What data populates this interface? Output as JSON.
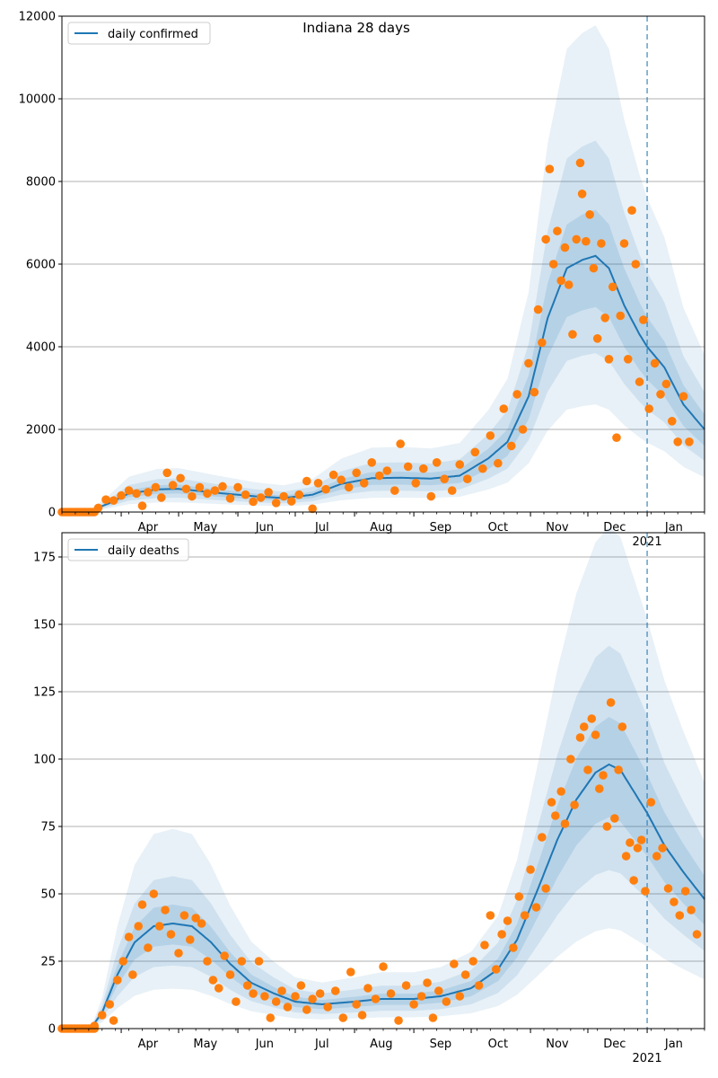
{
  "figure": {
    "title": "Indiana 28 days"
  },
  "colors": {
    "line": "#1f77b4",
    "dots": "#ff7f0e",
    "band": "#1f77b4",
    "grid": "#b0b0b0",
    "vline": "#1f77b4"
  },
  "chart_data": [
    {
      "type": "line",
      "title": "Indiana 28 days",
      "legend": {
        "label": "daily confirmed",
        "placement": "top-left"
      },
      "ylim": [
        0,
        12000
      ],
      "yticks": [
        0,
        2000,
        4000,
        6000,
        8000,
        10000,
        12000
      ],
      "grid": "y",
      "x_start": "2020-03-01",
      "x_end": "2021-01-31",
      "vline": "2021-01-01",
      "series_line_knots": [
        [
          "2020-03-01",
          0
        ],
        [
          "2020-03-15",
          20
        ],
        [
          "2020-03-25",
          200
        ],
        [
          "2020-04-05",
          450
        ],
        [
          "2020-04-20",
          550
        ],
        [
          "2020-05-01",
          560
        ],
        [
          "2020-05-20",
          470
        ],
        [
          "2020-06-10",
          380
        ],
        [
          "2020-06-25",
          340
        ],
        [
          "2020-07-10",
          420
        ],
        [
          "2020-07-25",
          680
        ],
        [
          "2020-08-10",
          820
        ],
        [
          "2020-08-25",
          830
        ],
        [
          "2020-09-10",
          810
        ],
        [
          "2020-09-25",
          880
        ],
        [
          "2020-10-10",
          1300
        ],
        [
          "2020-10-20",
          1700
        ],
        [
          "2020-10-31",
          2800
        ],
        [
          "2020-11-10",
          4700
        ],
        [
          "2020-11-20",
          5900
        ],
        [
          "2020-11-28",
          6100
        ],
        [
          "2020-12-05",
          6200
        ],
        [
          "2020-12-12",
          5900
        ],
        [
          "2020-12-20",
          5000
        ],
        [
          "2020-12-28",
          4300
        ],
        [
          "2021-01-01",
          4000
        ],
        [
          "2021-01-10",
          3500
        ],
        [
          "2021-01-20",
          2600
        ],
        [
          "2021-01-31",
          2000
        ]
      ],
      "bands_outer_ratio": [
        0.42,
        1.9
      ],
      "bands_mid_ratio": [
        0.62,
        1.45
      ],
      "bands_inner_ratio": [
        0.8,
        1.18
      ],
      "observed": [
        [
          "2020-03-20",
          100
        ],
        [
          "2020-03-24",
          300
        ],
        [
          "2020-03-28",
          280
        ],
        [
          "2020-04-01",
          400
        ],
        [
          "2020-04-05",
          520
        ],
        [
          "2020-04-09",
          450
        ],
        [
          "2020-04-12",
          150
        ],
        [
          "2020-04-15",
          480
        ],
        [
          "2020-04-19",
          600
        ],
        [
          "2020-04-22",
          350
        ],
        [
          "2020-04-25",
          950
        ],
        [
          "2020-04-28",
          650
        ],
        [
          "2020-05-02",
          820
        ],
        [
          "2020-05-05",
          560
        ],
        [
          "2020-05-08",
          380
        ],
        [
          "2020-05-12",
          600
        ],
        [
          "2020-05-16",
          450
        ],
        [
          "2020-05-20",
          520
        ],
        [
          "2020-05-24",
          620
        ],
        [
          "2020-05-28",
          330
        ],
        [
          "2020-06-01",
          600
        ],
        [
          "2020-06-05",
          420
        ],
        [
          "2020-06-09",
          250
        ],
        [
          "2020-06-13",
          350
        ],
        [
          "2020-06-17",
          480
        ],
        [
          "2020-06-21",
          220
        ],
        [
          "2020-06-25",
          380
        ],
        [
          "2020-06-29",
          260
        ],
        [
          "2020-07-03",
          420
        ],
        [
          "2020-07-07",
          750
        ],
        [
          "2020-07-10",
          80
        ],
        [
          "2020-07-13",
          700
        ],
        [
          "2020-07-17",
          550
        ],
        [
          "2020-07-21",
          900
        ],
        [
          "2020-07-25",
          780
        ],
        [
          "2020-07-29",
          600
        ],
        [
          "2020-08-02",
          950
        ],
        [
          "2020-08-06",
          700
        ],
        [
          "2020-08-10",
          1200
        ],
        [
          "2020-08-14",
          880
        ],
        [
          "2020-08-18",
          1000
        ],
        [
          "2020-08-22",
          520
        ],
        [
          "2020-08-25",
          1650
        ],
        [
          "2020-08-29",
          1100
        ],
        [
          "2020-09-02",
          700
        ],
        [
          "2020-09-06",
          1050
        ],
        [
          "2020-09-10",
          380
        ],
        [
          "2020-09-13",
          1200
        ],
        [
          "2020-09-17",
          800
        ],
        [
          "2020-09-21",
          520
        ],
        [
          "2020-09-25",
          1150
        ],
        [
          "2020-09-29",
          800
        ],
        [
          "2020-10-03",
          1450
        ],
        [
          "2020-10-07",
          1050
        ],
        [
          "2020-10-11",
          1850
        ],
        [
          "2020-10-15",
          1180
        ],
        [
          "2020-10-18",
          2500
        ],
        [
          "2020-10-22",
          1600
        ],
        [
          "2020-10-25",
          2850
        ],
        [
          "2020-10-28",
          2000
        ],
        [
          "2020-10-31",
          3600
        ],
        [
          "2020-11-03",
          2900
        ],
        [
          "2020-11-05",
          4900
        ],
        [
          "2020-11-07",
          4100
        ],
        [
          "2020-11-09",
          6600
        ],
        [
          "2020-11-11",
          8300
        ],
        [
          "2020-11-13",
          6000
        ],
        [
          "2020-11-15",
          6800
        ],
        [
          "2020-11-17",
          5600
        ],
        [
          "2020-11-19",
          6400
        ],
        [
          "2020-11-21",
          5500
        ],
        [
          "2020-11-23",
          4300
        ],
        [
          "2020-11-25",
          6600
        ],
        [
          "2020-11-27",
          8450
        ],
        [
          "2020-11-28",
          7700
        ],
        [
          "2020-11-30",
          6550
        ],
        [
          "2020-12-02",
          7200
        ],
        [
          "2020-12-04",
          5900
        ],
        [
          "2020-12-06",
          4200
        ],
        [
          "2020-12-08",
          6500
        ],
        [
          "2020-12-10",
          4700
        ],
        [
          "2020-12-12",
          3700
        ],
        [
          "2020-12-14",
          5450
        ],
        [
          "2020-12-16",
          1800
        ],
        [
          "2020-12-18",
          4750
        ],
        [
          "2020-12-20",
          6500
        ],
        [
          "2020-12-22",
          3700
        ],
        [
          "2020-12-24",
          7300
        ],
        [
          "2020-12-26",
          6000
        ],
        [
          "2020-12-28",
          3150
        ],
        [
          "2020-12-30",
          4650
        ],
        [
          "2021-01-02",
          2500
        ],
        [
          "2021-01-05",
          3600
        ],
        [
          "2021-01-08",
          2850
        ],
        [
          "2021-01-11",
          3100
        ],
        [
          "2021-01-14",
          2200
        ],
        [
          "2021-01-17",
          1700
        ],
        [
          "2021-01-20",
          2800
        ],
        [
          "2021-01-23",
          1700
        ]
      ],
      "xaxis": {
        "month_labels": [
          "Apr",
          "May",
          "Jun",
          "Jul",
          "Aug",
          "Sep",
          "Oct",
          "Nov",
          "Dec",
          "Jan"
        ],
        "year_label": "2021"
      }
    },
    {
      "type": "line",
      "legend": {
        "label": "daily deaths",
        "placement": "top-left"
      },
      "ylim": [
        0,
        184
      ],
      "yticks": [
        0,
        25,
        50,
        75,
        100,
        125,
        150,
        175
      ],
      "grid": "y",
      "x_start": "2020-03-01",
      "x_end": "2021-01-31",
      "vline": "2021-01-01",
      "series_line_knots": [
        [
          "2020-03-01",
          0
        ],
        [
          "2020-03-16",
          0
        ],
        [
          "2020-03-22",
          6
        ],
        [
          "2020-03-30",
          20
        ],
        [
          "2020-04-08",
          32
        ],
        [
          "2020-04-18",
          38
        ],
        [
          "2020-04-28",
          39
        ],
        [
          "2020-05-08",
          38
        ],
        [
          "2020-05-18",
          32
        ],
        [
          "2020-05-28",
          24
        ],
        [
          "2020-06-08",
          17
        ],
        [
          "2020-06-20",
          13
        ],
        [
          "2020-07-01",
          10
        ],
        [
          "2020-07-15",
          9
        ],
        [
          "2020-08-01",
          10
        ],
        [
          "2020-08-15",
          11
        ],
        [
          "2020-09-01",
          11
        ],
        [
          "2020-09-15",
          12
        ],
        [
          "2020-10-01",
          15
        ],
        [
          "2020-10-15",
          22
        ],
        [
          "2020-10-25",
          33
        ],
        [
          "2020-11-05",
          52
        ],
        [
          "2020-11-15",
          70
        ],
        [
          "2020-11-25",
          85
        ],
        [
          "2020-12-05",
          95
        ],
        [
          "2020-12-12",
          98
        ],
        [
          "2020-12-18",
          96
        ],
        [
          "2020-12-25",
          88
        ],
        [
          "2021-01-01",
          80
        ],
        [
          "2021-01-10",
          68
        ],
        [
          "2021-01-20",
          58
        ],
        [
          "2021-01-31",
          48
        ]
      ],
      "bands_outer_ratio": [
        0.38,
        1.9
      ],
      "bands_mid_ratio": [
        0.6,
        1.45
      ],
      "bands_inner_ratio": [
        0.8,
        1.18
      ],
      "observed": [
        [
          "2020-03-18",
          1
        ],
        [
          "2020-03-22",
          5
        ],
        [
          "2020-03-26",
          9
        ],
        [
          "2020-03-28",
          3
        ],
        [
          "2020-03-30",
          18
        ],
        [
          "2020-04-02",
          25
        ],
        [
          "2020-04-05",
          34
        ],
        [
          "2020-04-07",
          20
        ],
        [
          "2020-04-10",
          38
        ],
        [
          "2020-04-12",
          46
        ],
        [
          "2020-04-15",
          30
        ],
        [
          "2020-04-18",
          50
        ],
        [
          "2020-04-21",
          38
        ],
        [
          "2020-04-24",
          44
        ],
        [
          "2020-04-27",
          35
        ],
        [
          "2020-05-01",
          28
        ],
        [
          "2020-05-04",
          42
        ],
        [
          "2020-05-07",
          33
        ],
        [
          "2020-05-10",
          41
        ],
        [
          "2020-05-13",
          39
        ],
        [
          "2020-05-16",
          25
        ],
        [
          "2020-05-19",
          18
        ],
        [
          "2020-05-22",
          15
        ],
        [
          "2020-05-25",
          27
        ],
        [
          "2020-05-28",
          20
        ],
        [
          "2020-05-31",
          10
        ],
        [
          "2020-06-03",
          25
        ],
        [
          "2020-06-06",
          16
        ],
        [
          "2020-06-09",
          13
        ],
        [
          "2020-06-12",
          25
        ],
        [
          "2020-06-15",
          12
        ],
        [
          "2020-06-18",
          4
        ],
        [
          "2020-06-21",
          10
        ],
        [
          "2020-06-24",
          14
        ],
        [
          "2020-06-27",
          8
        ],
        [
          "2020-07-01",
          12
        ],
        [
          "2020-07-04",
          16
        ],
        [
          "2020-07-07",
          7
        ],
        [
          "2020-07-10",
          11
        ],
        [
          "2020-07-14",
          13
        ],
        [
          "2020-07-18",
          8
        ],
        [
          "2020-07-22",
          14
        ],
        [
          "2020-07-26",
          4
        ],
        [
          "2020-07-30",
          21
        ],
        [
          "2020-08-02",
          9
        ],
        [
          "2020-08-05",
          5
        ],
        [
          "2020-08-08",
          15
        ],
        [
          "2020-08-12",
          11
        ],
        [
          "2020-08-16",
          23
        ],
        [
          "2020-08-20",
          13
        ],
        [
          "2020-08-24",
          3
        ],
        [
          "2020-08-28",
          16
        ],
        [
          "2020-09-01",
          9
        ],
        [
          "2020-09-05",
          12
        ],
        [
          "2020-09-08",
          17
        ],
        [
          "2020-09-11",
          4
        ],
        [
          "2020-09-14",
          14
        ],
        [
          "2020-09-18",
          10
        ],
        [
          "2020-09-22",
          24
        ],
        [
          "2020-09-25",
          12
        ],
        [
          "2020-09-28",
          20
        ],
        [
          "2020-10-02",
          25
        ],
        [
          "2020-10-05",
          16
        ],
        [
          "2020-10-08",
          31
        ],
        [
          "2020-10-11",
          42
        ],
        [
          "2020-10-14",
          22
        ],
        [
          "2020-10-17",
          35
        ],
        [
          "2020-10-20",
          40
        ],
        [
          "2020-10-23",
          30
        ],
        [
          "2020-10-26",
          49
        ],
        [
          "2020-10-29",
          42
        ],
        [
          "2020-11-01",
          59
        ],
        [
          "2020-11-04",
          45
        ],
        [
          "2020-11-07",
          71
        ],
        [
          "2020-11-09",
          52
        ],
        [
          "2020-11-12",
          84
        ],
        [
          "2020-11-14",
          79
        ],
        [
          "2020-11-17",
          88
        ],
        [
          "2020-11-19",
          76
        ],
        [
          "2020-11-22",
          100
        ],
        [
          "2020-11-24",
          83
        ],
        [
          "2020-11-27",
          108
        ],
        [
          "2020-11-29",
          112
        ],
        [
          "2020-12-01",
          96
        ],
        [
          "2020-12-03",
          115
        ],
        [
          "2020-12-05",
          109
        ],
        [
          "2020-12-07",
          89
        ],
        [
          "2020-12-09",
          94
        ],
        [
          "2020-12-11",
          75
        ],
        [
          "2020-12-13",
          121
        ],
        [
          "2020-12-15",
          78
        ],
        [
          "2020-12-17",
          96
        ],
        [
          "2020-12-19",
          112
        ],
        [
          "2020-12-21",
          64
        ],
        [
          "2020-12-23",
          69
        ],
        [
          "2020-12-25",
          55
        ],
        [
          "2020-12-27",
          67
        ],
        [
          "2020-12-29",
          70
        ],
        [
          "2020-12-31",
          51
        ],
        [
          "2021-01-03",
          84
        ],
        [
          "2021-01-06",
          64
        ],
        [
          "2021-01-09",
          67
        ],
        [
          "2021-01-12",
          52
        ],
        [
          "2021-01-15",
          47
        ],
        [
          "2021-01-18",
          42
        ],
        [
          "2021-01-21",
          51
        ],
        [
          "2021-01-24",
          44
        ],
        [
          "2021-01-27",
          35
        ]
      ],
      "xaxis": {
        "month_labels": [
          "Apr",
          "May",
          "Jun",
          "Jul",
          "Aug",
          "Sep",
          "Oct",
          "Nov",
          "Dec",
          "Jan"
        ],
        "year_label": "2021"
      }
    }
  ]
}
